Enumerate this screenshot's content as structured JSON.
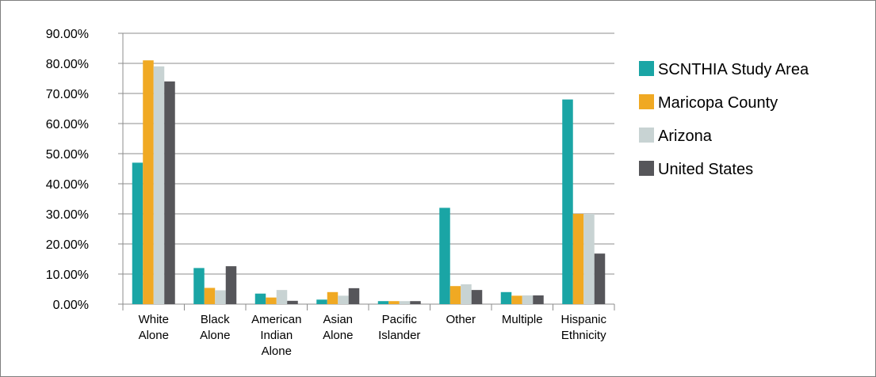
{
  "chart_data": {
    "type": "bar",
    "categories": [
      [
        "White",
        "Alone"
      ],
      [
        "Black",
        "Alone"
      ],
      [
        "American",
        "Indian",
        "Alone"
      ],
      [
        "Asian",
        "Alone"
      ],
      [
        "Pacific",
        "Islander"
      ],
      [
        "Other"
      ],
      [
        "Multiple"
      ],
      [
        "Hispanic",
        "Ethnicity"
      ]
    ],
    "series": [
      {
        "name": "SCNTHIA Study Area",
        "color": "#1aa5a5",
        "values": [
          0.47,
          0.12,
          0.035,
          0.015,
          0.01,
          0.32,
          0.04,
          0.68
        ]
      },
      {
        "name": "Maricopa County",
        "color": "#f0a923",
        "values": [
          0.81,
          0.054,
          0.022,
          0.04,
          0.01,
          0.06,
          0.028,
          0.3
        ]
      },
      {
        "name": "Arizona",
        "color": "#c8d3d3",
        "values": [
          0.79,
          0.046,
          0.047,
          0.028,
          0.01,
          0.066,
          0.029,
          0.3
        ]
      },
      {
        "name": "United States",
        "color": "#56565a",
        "values": [
          0.74,
          0.126,
          0.011,
          0.053,
          0.01,
          0.047,
          0.029,
          0.168
        ]
      }
    ],
    "ylim": [
      0,
      0.9
    ],
    "yticks": [
      "0.00%",
      "10.00%",
      "20.00%",
      "30.00%",
      "40.00%",
      "50.00%",
      "60.00%",
      "70.00%",
      "80.00%",
      "90.00%"
    ],
    "grid": true,
    "legend": "right"
  }
}
